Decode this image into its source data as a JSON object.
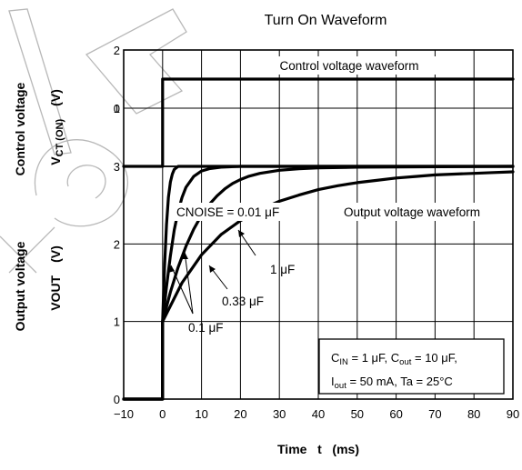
{
  "chart_data": {
    "type": "line",
    "title": "Turn On Waveform",
    "xlabel": "Time   t   (ms)",
    "xlim": [
      -10,
      90
    ],
    "ylim": [
      0,
      2
    ],
    "x_ticks": [
      "−10",
      "0",
      "10",
      "20",
      "30",
      "40",
      "50",
      "60",
      "70",
      "80",
      "90"
    ],
    "grid": true,
    "panels": [
      {
        "id": "control",
        "ylabel_line1": "Control voltage",
        "ylabel_line2_main": "V",
        "ylabel_line2_sub": "CT (ON)",
        "ylabel_line2_unit": "(V)",
        "ylim": [
          0,
          2
        ],
        "y_ticks": [
          "0",
          "1",
          "2"
        ],
        "annotation": "Control voltage waveform",
        "series": [
          {
            "x": [
              -10,
              0,
              0,
              90
            ],
            "y": [
              0,
              0,
              1.5,
              1.5
            ]
          }
        ]
      },
      {
        "id": "output",
        "ylabel_line1": "Output voltage",
        "ylabel_line2_main": "VOUT",
        "ylabel_line2_unit": "(V)",
        "ylim": [
          0,
          3
        ],
        "y_ticks": [
          "0",
          "1",
          "2",
          "3"
        ],
        "annotation": "Output voltage waveform",
        "series": [
          {
            "label": "CNOISE = 0.01 μF",
            "x": [
              -10,
              0,
              0,
              0.5,
              1,
              1.5,
              2,
              2.5,
              3,
              4,
              90
            ],
            "y": [
              0,
              0,
              1,
              1.7,
              2.25,
              2.6,
              2.8,
              2.9,
              2.96,
              3,
              3
            ]
          },
          {
            "label": "0.1 μF",
            "x": [
              -10,
              0,
              0,
              1,
              2,
              3,
              4,
              5,
              6,
              8,
              10,
              12,
              15,
              20,
              90
            ],
            "y": [
              0,
              0,
              1,
              1.45,
              1.85,
              2.18,
              2.42,
              2.6,
              2.73,
              2.87,
              2.94,
              2.97,
              2.99,
              3,
              3
            ]
          },
          {
            "label": "0.33 μF",
            "x": [
              -10,
              0,
              0,
              2,
              4,
              6,
              8,
              10,
              12,
              14,
              16,
              18,
              20,
              22,
              25,
              30,
              35,
              40,
              50,
              90
            ],
            "y": [
              0,
              0,
              1,
              1.38,
              1.7,
              1.97,
              2.19,
              2.37,
              2.51,
              2.62,
              2.71,
              2.78,
              2.83,
              2.87,
              2.91,
              2.95,
              2.97,
              2.98,
              2.99,
              3
            ]
          },
          {
            "label": "1 μF",
            "x": [
              -10,
              0,
              0,
              5,
              10,
              15,
              20,
              25,
              30,
              35,
              40,
              45,
              50,
              55,
              60,
              65,
              70,
              75,
              80,
              85,
              90
            ],
            "y": [
              0,
              0,
              1,
              1.5,
              1.86,
              2.12,
              2.3,
              2.44,
              2.55,
              2.63,
              2.7,
              2.75,
              2.79,
              2.82,
              2.85,
              2.87,
              2.89,
              2.9,
              2.91,
              2.92,
              2.93
            ]
          }
        ]
      }
    ],
    "curve_labels": [
      "CNOISE = 0.01 μF",
      "0.1 μF",
      "0.33 μF",
      "1 μF"
    ],
    "conditions": {
      "line1": {
        "cin_main": "C",
        "cin_sub": "IN",
        "cin_val": " = 1 μF, ",
        "cout_main": "C",
        "cout_sub": "out",
        "cout_val": " = 10 μF,"
      },
      "line2": {
        "iout_main": "I",
        "iout_sub": "out",
        "iout_val": " = 50 mA, Ta = 25°C"
      }
    }
  }
}
